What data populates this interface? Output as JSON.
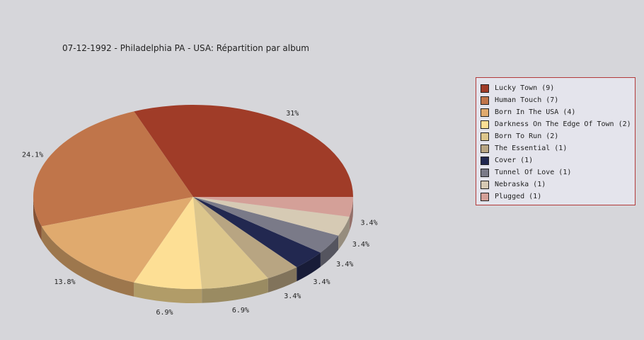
{
  "chart_data": {
    "type": "pie",
    "title": "07-12-1992 - Philadelphia PA - USA:  Répartition par album",
    "legend_position": "right",
    "slices": [
      {
        "name": "Lucky Town (9)",
        "value": 9,
        "label": "31%",
        "color": "#a03c28"
      },
      {
        "name": "Human Touch (7)",
        "value": 7,
        "label": "24.1%",
        "color": "#c0754a"
      },
      {
        "name": "Born In The USA (4)",
        "value": 4,
        "label": "13.8%",
        "color": "#e0aa6e"
      },
      {
        "name": "Darkness On The Edge Of Town (2)",
        "value": 2,
        "label": "6.9%",
        "color": "#fddf95"
      },
      {
        "name": "Born To Run (2)",
        "value": 2,
        "label": "6.9%",
        "color": "#dcc68c"
      },
      {
        "name": "The Essential (1)",
        "value": 1,
        "label": "3.4%",
        "color": "#b8a582"
      },
      {
        "name": "Cover (1)",
        "value": 1,
        "label": "3.4%",
        "color": "#222850"
      },
      {
        "name": "Tunnel Of Love (1)",
        "value": 1,
        "label": "3.4%",
        "color": "#7a7a88"
      },
      {
        "name": "Nebraska (1)",
        "value": 1,
        "label": "3.4%",
        "color": "#d6cab4"
      },
      {
        "name": "Plugged (1)",
        "value": 1,
        "label": "3.4%",
        "color": "#d4a098"
      }
    ]
  }
}
